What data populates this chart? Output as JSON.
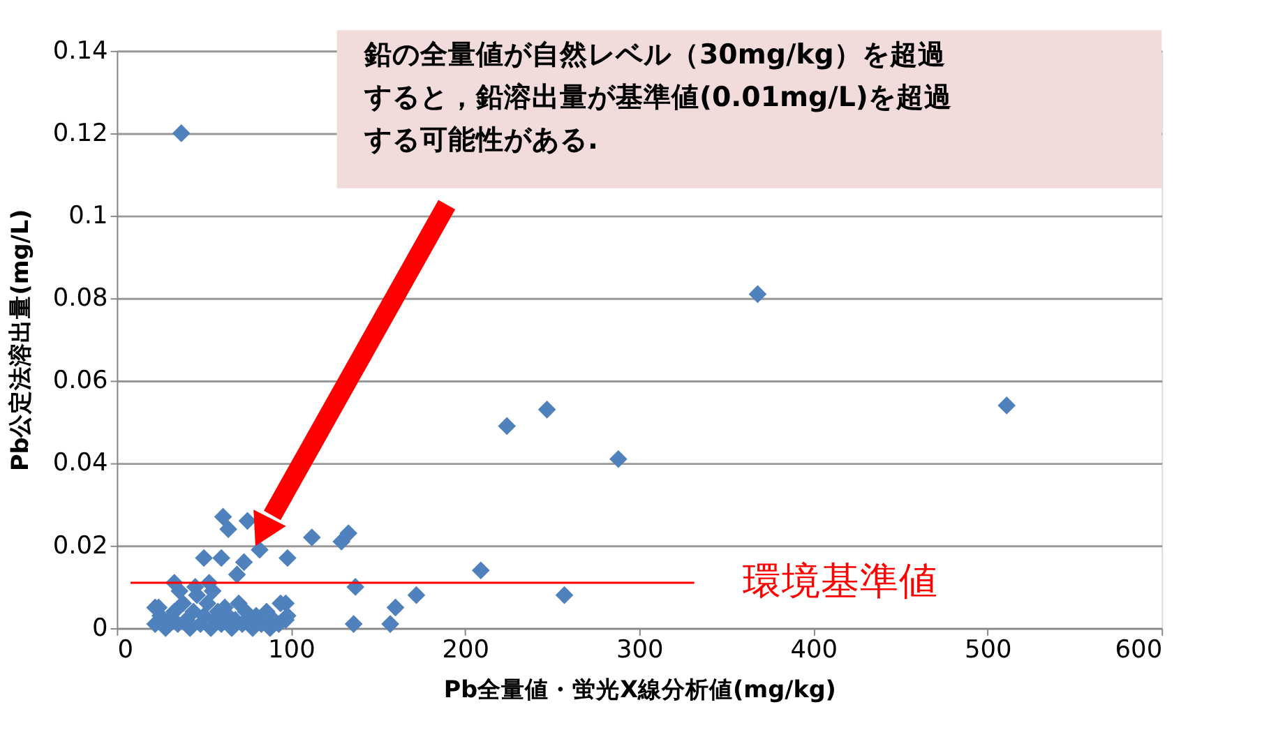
{
  "chart_data": {
    "type": "scatter",
    "xlabel": "Pb全量値・蛍光X線分析値(mg/kg)",
    "ylabel": "Pb公定法溶出量(mg/L)",
    "x": [
      37,
      368,
      511,
      247,
      224,
      288,
      209,
      257,
      172,
      160,
      157,
      137,
      136,
      133,
      129,
      112,
      98,
      97,
      97,
      82,
      75,
      61,
      64,
      73,
      69,
      50,
      60,
      33,
      22,
      45,
      53,
      24,
      94,
      36,
      55,
      22,
      25,
      28,
      30,
      33,
      35,
      38,
      40,
      42,
      44,
      46,
      48,
      50,
      52,
      54,
      56,
      58,
      60,
      62,
      64,
      66,
      68,
      70,
      72,
      74,
      76,
      78,
      80,
      83,
      86,
      88,
      90,
      93,
      98
    ],
    "series": [
      {
        "color": "#4f81bd",
        "values": [
          0.12,
          0.081,
          0.054,
          0.053,
          0.049,
          0.041,
          0.014,
          0.008,
          0.008,
          0.005,
          0.001,
          0.01,
          0.001,
          0.023,
          0.021,
          0.022,
          0.017,
          0.006,
          0.002,
          0.019,
          0.026,
          0.027,
          0.024,
          0.016,
          0.013,
          0.017,
          0.017,
          0.011,
          0.005,
          0.01,
          0.011,
          0.005,
          0.006,
          0.009,
          0.009,
          0.001,
          0.003,
          0,
          0.002,
          0.004,
          0.001,
          0.006,
          0.002,
          0,
          0.004,
          0.008,
          0.001,
          0.003,
          0.006,
          0,
          0.002,
          0.004,
          0.001,
          0.005,
          0.003,
          0,
          0.002,
          0.006,
          0.001,
          0.004,
          0.002,
          0,
          0.003,
          0.001,
          0.004,
          0,
          0.002,
          0.001,
          0.003
        ]
      }
    ],
    "marker": "diamond",
    "xlim": [
      0,
      600
    ],
    "xticks": [
      0,
      100,
      200,
      300,
      400,
      500,
      600
    ],
    "ylim": [
      0,
      0.14
    ],
    "yticks": [
      0,
      0.02,
      0.04,
      0.06,
      0.08,
      0.1,
      0.12,
      0.14
    ],
    "grid": "y",
    "ref_lines": [
      {
        "axis": "y",
        "value": 0.011,
        "label": "環境基準値",
        "color": "#ff0000"
      }
    ],
    "annotations": [
      "鉛の全量値が自然レベル（30mg/kg）を超過すると，鉛溶出量が基準値(0.01mg/L)を超過する可能性がある."
    ]
  }
}
